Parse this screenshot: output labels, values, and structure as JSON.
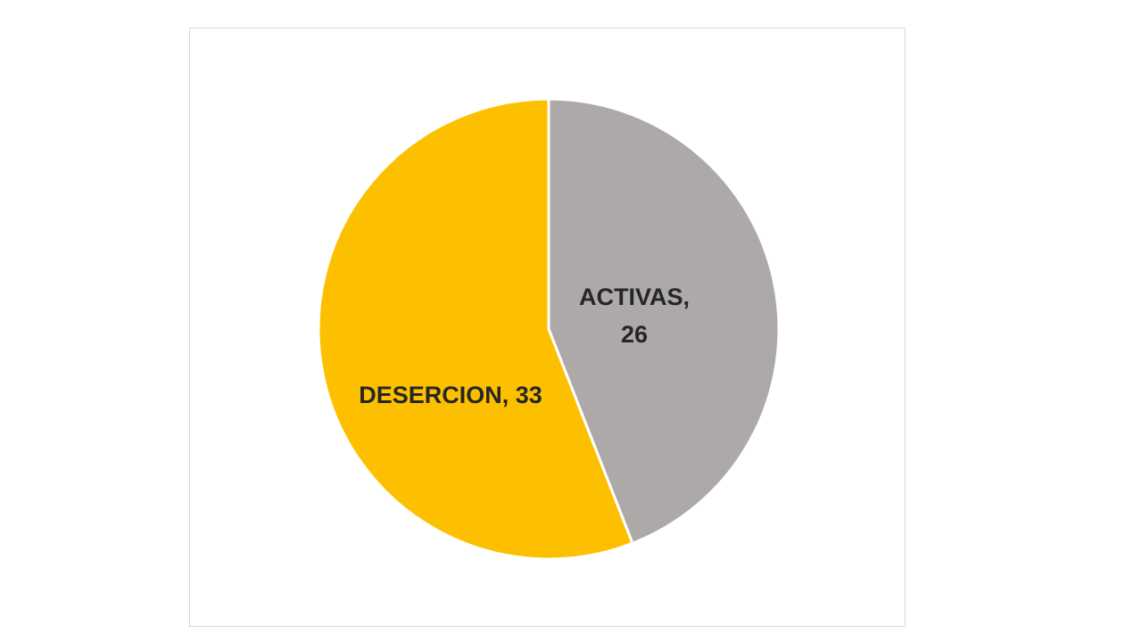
{
  "chart_data": {
    "type": "pie",
    "title": "",
    "slices": [
      {
        "name": "ACTIVAS",
        "value": 26,
        "color": "#ADA9A9",
        "label_line1": "ACTIVAS,",
        "label_line2": "26"
      },
      {
        "name": "DESERCION",
        "value": 33,
        "color": "#FDC000",
        "label_line1": "DESERCION, 33"
      }
    ],
    "legend": "none",
    "start_angle_deg": 0,
    "direction": "clockwise"
  }
}
